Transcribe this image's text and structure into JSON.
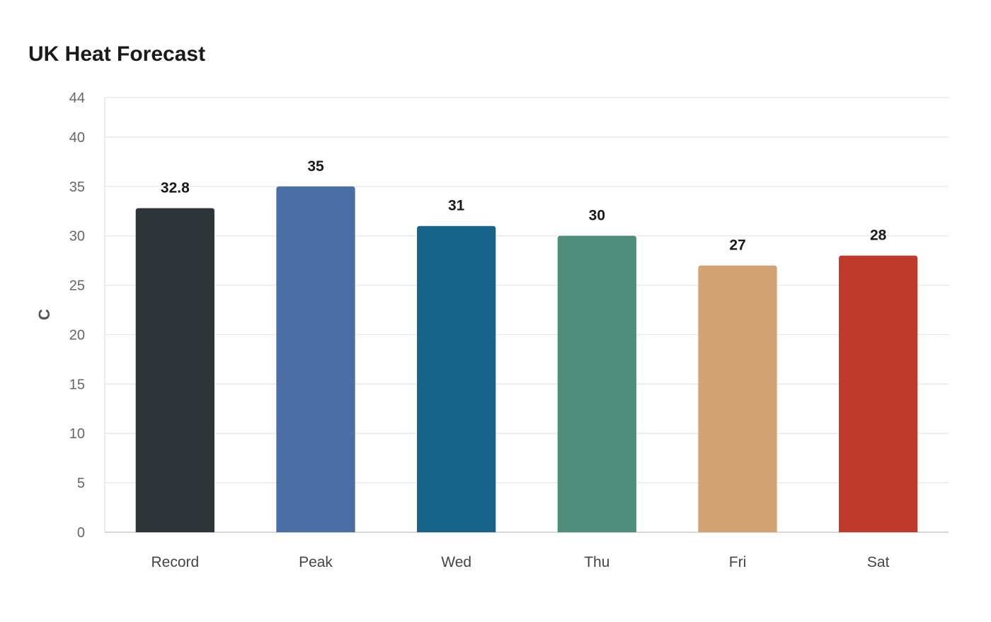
{
  "chart_data": {
    "type": "bar",
    "title": "UK Heat Forecast",
    "xlabel": "",
    "ylabel": "C",
    "categories": [
      "Record",
      "Peak",
      "Wed",
      "Thu",
      "Fri",
      "Sat"
    ],
    "values": [
      32.8,
      35,
      31,
      30,
      27,
      28
    ],
    "value_labels": [
      "32.8",
      "35",
      "31",
      "30",
      "27",
      "28"
    ],
    "colors": [
      "#2e3538",
      "#4a6ea3",
      "#186389",
      "#4f8e7b",
      "#d2a373",
      "#c03a2b"
    ],
    "ylim": [
      0,
      44
    ],
    "yticks": [
      0,
      5,
      10,
      15,
      20,
      25,
      30,
      35,
      40,
      44
    ],
    "grid": true,
    "legend": "none"
  }
}
